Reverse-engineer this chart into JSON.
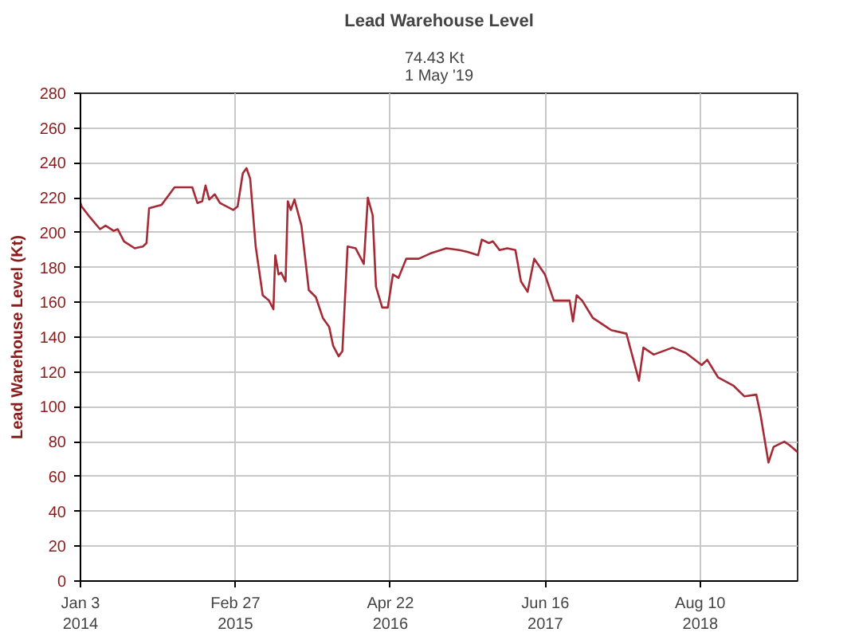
{
  "chart_data": {
    "type": "line",
    "title": "Lead Warehouse Level",
    "subtitle": "74.43 Kt\n1 May '19",
    "ylabel": "Lead Warehouse Level (Kt)",
    "x": [
      "2014-01-03",
      "2014-01-06",
      "2014-01-28",
      "2014-02-25",
      "2014-03-12",
      "2014-04-03",
      "2014-04-14",
      "2014-05-01",
      "2014-05-30",
      "2014-06-21",
      "2014-07-01",
      "2014-07-08",
      "2014-08-11",
      "2014-09-15",
      "2014-11-02",
      "2014-11-16",
      "2014-11-29",
      "2014-12-08",
      "2014-12-18",
      "2015-01-02",
      "2015-01-16",
      "2015-02-21",
      "2015-03-05",
      "2015-03-19",
      "2015-03-29",
      "2015-04-08",
      "2015-04-23",
      "2015-05-12",
      "2015-05-29",
      "2015-06-10",
      "2015-06-15",
      "2015-06-24",
      "2015-07-01",
      "2015-07-13",
      "2015-07-19",
      "2015-07-27",
      "2015-08-06",
      "2015-08-25",
      "2015-09-14",
      "2015-10-03",
      "2015-10-22",
      "2015-11-08",
      "2015-11-19",
      "2015-12-04",
      "2015-12-14",
      "2015-12-28",
      "2016-01-19",
      "2016-02-10",
      "2016-02-21",
      "2016-03-05",
      "2016-03-14",
      "2016-03-31",
      "2016-04-15",
      "2016-04-29",
      "2016-05-14",
      "2016-06-04",
      "2016-07-08",
      "2016-08-08",
      "2016-09-21",
      "2016-10-26",
      "2016-11-17",
      "2016-12-16",
      "2016-12-26",
      "2017-01-14",
      "2017-01-25",
      "2017-02-12",
      "2017-03-05",
      "2017-03-27",
      "2017-04-11",
      "2017-04-29",
      "2017-05-17",
      "2017-06-15",
      "2017-07-09",
      "2017-08-21",
      "2017-08-30",
      "2017-09-09",
      "2017-09-24",
      "2017-10-23",
      "2017-12-12",
      "2018-01-22",
      "2018-02-25",
      "2018-03-09",
      "2018-04-06",
      "2018-05-27",
      "2018-07-02",
      "2018-08-14",
      "2018-08-29",
      "2018-09-27",
      "2018-11-09",
      "2018-12-08",
      "2019-01-09",
      "2019-01-20",
      "2019-02-11",
      "2019-02-25",
      "2019-03-26",
      "2019-04-09",
      "2019-05-01"
    ],
    "series": [
      {
        "color": "#a52a35",
        "values": [
          217,
          215,
          209,
          202,
          204,
          201,
          202,
          195,
          191,
          192,
          194,
          214,
          216,
          226,
          226,
          217,
          218,
          227,
          219,
          222,
          217,
          213,
          215,
          234,
          237,
          231,
          192,
          164,
          161,
          156,
          187,
          176,
          177,
          172,
          218,
          213,
          219,
          204,
          167,
          163,
          151,
          146,
          135,
          129,
          132,
          192,
          191,
          182,
          220,
          210,
          169,
          157,
          157,
          176,
          174,
          185,
          185,
          188,
          191,
          190,
          189,
          187,
          196,
          194,
          195,
          190,
          191,
          190,
          172,
          166,
          185,
          176,
          161,
          161,
          149,
          164,
          161,
          151,
          144,
          142,
          115,
          134,
          130,
          134,
          131,
          124,
          127,
          117,
          112,
          106,
          107,
          96,
          68,
          77,
          80,
          78,
          74
        ]
      }
    ],
    "xlim": [
      "2014-01-03",
      "2019-05-01"
    ],
    "xticks": [
      {
        "value": "2014-01-03",
        "label": "Jan 3\n2014"
      },
      {
        "value": "2015-02-27",
        "label": "Feb 27\n2015"
      },
      {
        "value": "2016-04-22",
        "label": "Apr 22\n2016"
      },
      {
        "value": "2017-06-16",
        "label": "Jun 16\n2017"
      },
      {
        "value": "2018-08-10",
        "label": "Aug 10\n2018"
      }
    ],
    "ylim": [
      0,
      280
    ],
    "yticks": [
      0,
      20,
      40,
      60,
      80,
      100,
      120,
      140,
      160,
      180,
      200,
      220,
      240,
      260,
      280
    ],
    "grid": true,
    "marker": "none",
    "line_style": "solid"
  }
}
